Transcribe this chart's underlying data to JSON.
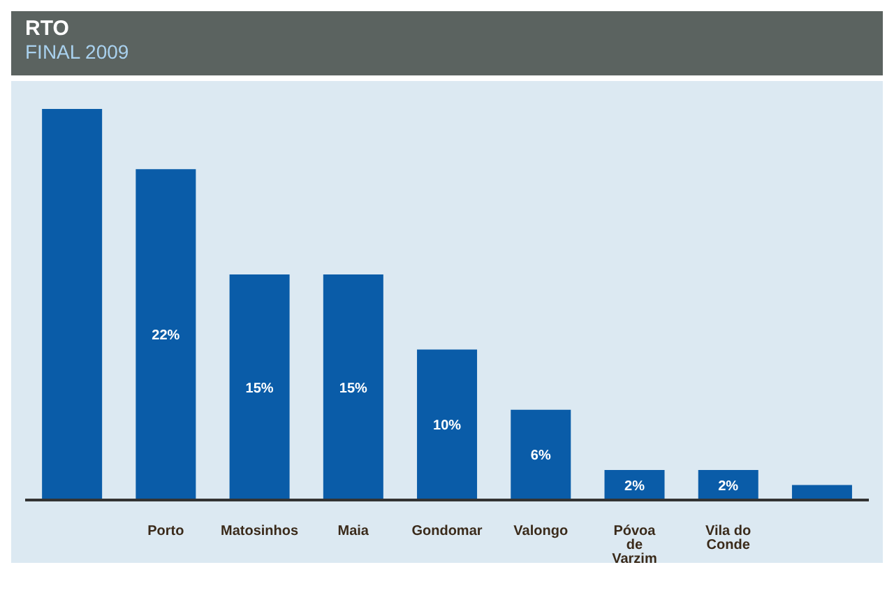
{
  "chart_data": {
    "type": "bar",
    "title": "RTO",
    "subtitle": "FINAL 2009",
    "categories": [
      null,
      "Porto",
      "Matosinhos",
      "Maia",
      "Gondomar",
      "Valongo",
      "Póvoa de Varzim",
      "Vila do Conde",
      null
    ],
    "values": [
      26,
      22,
      15,
      15,
      10,
      6,
      2,
      2,
      1
    ],
    "value_labels": [
      null,
      "22%",
      "15%",
      "15%",
      "10%",
      "6%",
      "2%",
      "2%",
      null
    ],
    "color": "#0a5ca8"
  }
}
